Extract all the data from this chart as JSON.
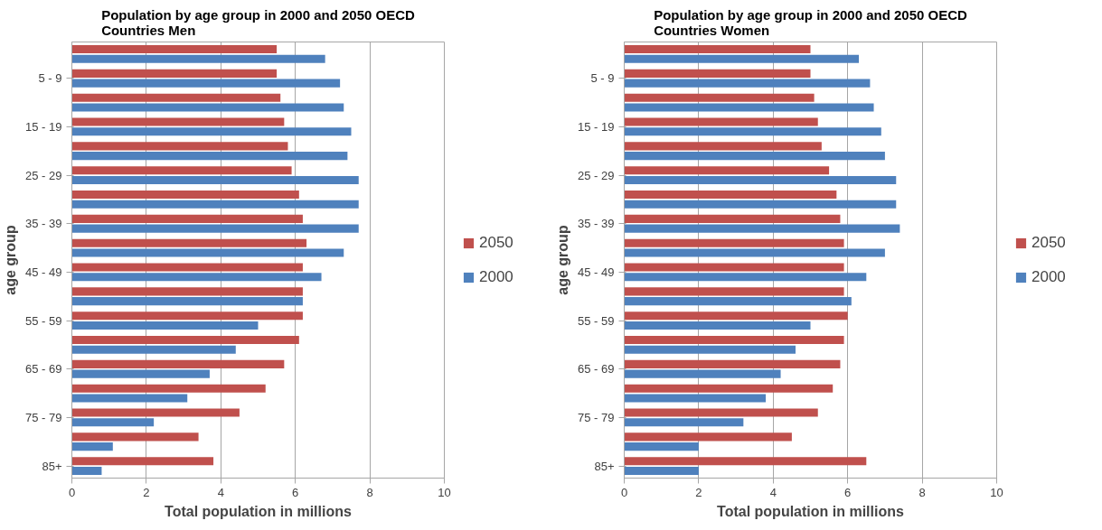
{
  "chart_data": [
    {
      "type": "bar",
      "orientation": "horizontal",
      "title": "Population by age group in 2000 and 2050 OECD Countries Men",
      "xlabel": "Total population in millions",
      "ylabel": "age group",
      "categories": [
        null,
        "5 - 9",
        null,
        "15 - 19",
        null,
        "25 - 29",
        null,
        "35 - 39",
        null,
        "45 - 49",
        null,
        "55 - 59",
        null,
        "65 - 69",
        null,
        "75 - 79",
        null,
        "85+"
      ],
      "series": [
        {
          "name": "2050",
          "color": "#c0504d",
          "values": [
            5.5,
            5.5,
            5.6,
            5.7,
            5.8,
            5.9,
            6.1,
            6.2,
            6.3,
            6.2,
            6.2,
            6.2,
            6.1,
            5.7,
            5.2,
            4.5,
            3.4,
            3.8
          ]
        },
        {
          "name": "2000",
          "color": "#4f81bd",
          "values": [
            6.8,
            7.2,
            7.3,
            7.5,
            7.4,
            7.7,
            7.7,
            7.7,
            7.3,
            6.7,
            6.2,
            5.0,
            4.4,
            3.7,
            3.1,
            2.2,
            1.1,
            0.8
          ]
        }
      ],
      "xlim": [
        0,
        10
      ],
      "xticks": [
        0,
        2,
        4,
        6,
        8,
        10
      ],
      "grid": "x",
      "legend": "right"
    },
    {
      "type": "bar",
      "orientation": "horizontal",
      "title": "Population by age group in 2000 and 2050 OECD Countries Women",
      "xlabel": "Total population in millions",
      "ylabel": "age group",
      "categories": [
        null,
        "5 - 9",
        null,
        "15 - 19",
        null,
        "25 - 29",
        null,
        "35 - 39",
        null,
        "45 - 49",
        null,
        "55 - 59",
        null,
        "65 - 69",
        null,
        "75 - 79",
        null,
        "85+"
      ],
      "series": [
        {
          "name": "2050",
          "color": "#c0504d",
          "values": [
            5.0,
            5.0,
            5.1,
            5.2,
            5.3,
            5.5,
            5.7,
            5.8,
            5.9,
            5.9,
            5.9,
            6.0,
            5.9,
            5.8,
            5.6,
            5.2,
            4.5,
            6.5
          ]
        },
        {
          "name": "2000",
          "color": "#4f81bd",
          "values": [
            6.3,
            6.6,
            6.7,
            6.9,
            7.0,
            7.3,
            7.3,
            7.4,
            7.0,
            6.5,
            6.1,
            5.0,
            4.6,
            4.2,
            3.8,
            3.2,
            2.0,
            2.0
          ]
        }
      ],
      "xlim": [
        0,
        10
      ],
      "xticks": [
        0,
        2,
        4,
        6,
        8,
        10
      ],
      "grid": "x",
      "legend": "right"
    }
  ]
}
